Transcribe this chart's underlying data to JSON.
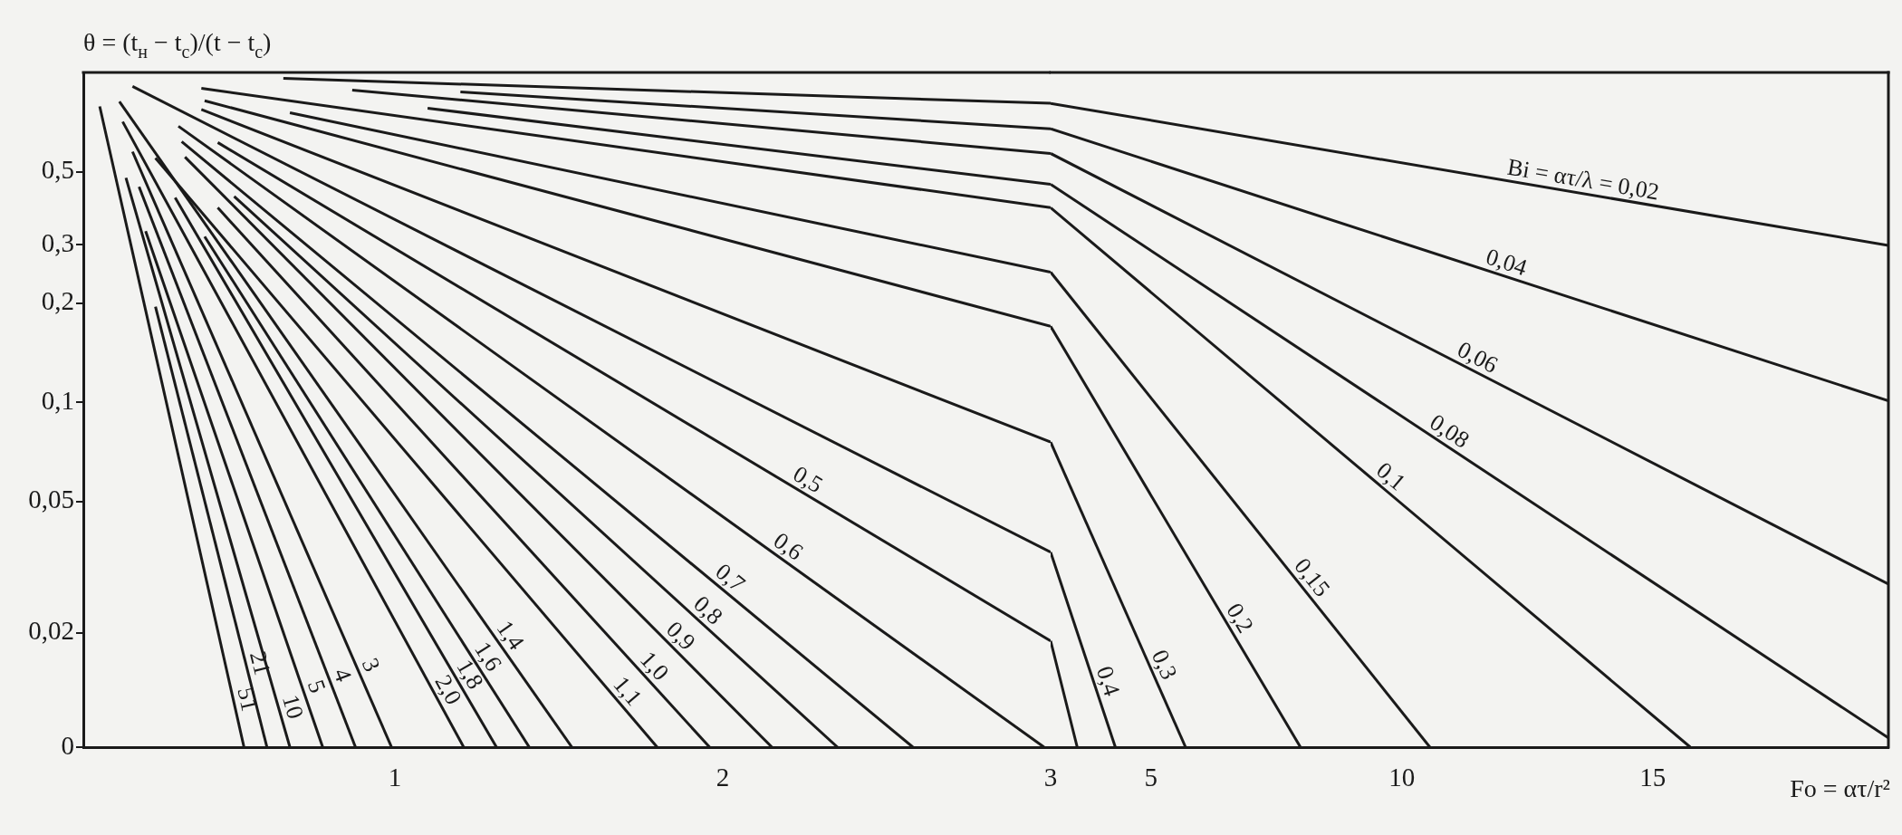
{
  "chart_data": [
    {
      "type": "line",
      "ylabel": "θ = (t$_{н}$ − t$_{с}$)/(t − t$_{с}$)",
      "log": "y",
      "xlim": [
        0.05,
        3
      ],
      "xticks": [
        1,
        2
      ],
      "ylim": [
        0.009,
        1
      ],
      "yticks": [
        {
          "value": 0.009,
          "label": "0"
        },
        {
          "value": 0.02,
          "label": "0,02"
        },
        {
          "value": 0.05,
          "label": "0,05"
        },
        {
          "value": 0.1,
          "label": "0,1"
        },
        {
          "value": 0.2,
          "label": "0,2"
        },
        {
          "value": 0.3,
          "label": "0,3"
        },
        {
          "value": 0.5,
          "label": "0,5"
        }
      ],
      "series": [
        {
          "color": "#1a1a1a",
          "x": [
            0.66,
            3
          ],
          "values": [
            0.96,
            0.806
          ]
        },
        {
          "color": "#1a1a1a",
          "x": [
            1.2,
            3
          ],
          "values": [
            0.873,
            0.675
          ]
        },
        {
          "color": "#1a1a1a",
          "x": [
            0.87,
            3
          ],
          "values": [
            0.884,
            0.568
          ]
        },
        {
          "color": "#1a1a1a",
          "x": [
            1.1,
            3
          ],
          "values": [
            0.779,
            0.458
          ]
        },
        {
          "color": "#1a1a1a",
          "x": [
            0.41,
            3
          ],
          "values": [
            0.895,
            0.389
          ]
        },
        {
          "color": "#1a1a1a",
          "x": [
            0.68,
            3
          ],
          "values": [
            0.755,
            0.248
          ]
        },
        {
          "color": "#1a1a1a",
          "x": [
            0.42,
            3
          ],
          "values": [
            0.821,
            0.17
          ]
        },
        {
          "color": "#1a1a1a",
          "x": [
            0.41,
            3
          ],
          "values": [
            0.772,
            0.0757
          ]
        },
        {
          "color": "#1a1a1a",
          "x": [
            0.2,
            3
          ],
          "values": [
            0.907,
            0.0351
          ]
        },
        {
          "name": "0,5",
          "color": "#1a1a1a",
          "x": [
            0.46,
            3
          ],
          "values": [
            0.613,
            0.0189
          ]
        },
        {
          "name": "0,6",
          "color": "#1a1a1a",
          "x": [
            0.34,
            2.98
          ],
          "values": [
            0.687,
            0.009
          ]
        },
        {
          "name": "0,7",
          "color": "#1a1a1a",
          "x": [
            0.35,
            2.58
          ],
          "values": [
            0.617,
            0.009
          ]
        },
        {
          "name": "0,8",
          "color": "#1a1a1a",
          "x": [
            0.51,
            2.35
          ],
          "values": [
            0.421,
            0.009
          ]
        },
        {
          "name": "0,9",
          "color": "#1a1a1a",
          "x": [
            0.36,
            2.15
          ],
          "values": [
            0.554,
            0.009
          ]
        },
        {
          "name": "1,0",
          "color": "#1a1a1a",
          "x": [
            0.46,
            1.96
          ],
          "values": [
            0.389,
            0.009
          ]
        },
        {
          "name": "1,1",
          "color": "#1a1a1a",
          "x": [
            0.27,
            1.8
          ],
          "values": [
            0.55,
            0.009
          ]
        },
        {
          "name": "1,4",
          "color": "#1a1a1a",
          "x": [
            0.16,
            1.54
          ],
          "values": [
            0.816,
            0.009
          ]
        },
        {
          "name": "1,6",
          "color": "#1a1a1a",
          "x": [
            0.42,
            1.41
          ],
          "values": [
            0.318,
            0.009
          ]
        },
        {
          "name": "1,8",
          "color": "#1a1a1a",
          "x": [
            0.33,
            1.31
          ],
          "values": [
            0.417,
            0.009
          ]
        },
        {
          "name": "2,0",
          "color": "#1a1a1a",
          "x": [
            0.17,
            1.21
          ],
          "values": [
            0.709,
            0.009
          ]
        },
        {
          "name": "3",
          "color": "#1a1a1a",
          "x": [
            0.2,
            0.99
          ],
          "values": [
            0.575,
            0.009
          ]
        },
        {
          "name": "4",
          "color": "#1a1a1a",
          "x": [
            0.22,
            0.88
          ],
          "values": [
            0.45,
            0.009
          ]
        },
        {
          "name": "5",
          "color": "#1a1a1a",
          "x": [
            0.24,
            0.78
          ],
          "values": [
            0.33,
            0.009
          ]
        },
        {
          "name": "10",
          "color": "#1a1a1a",
          "x": [
            0.18,
            0.68
          ],
          "values": [
            0.479,
            0.009
          ]
        },
        {
          "name": "21",
          "color": "#1a1a1a",
          "x": [
            0.27,
            0.61
          ],
          "values": [
            0.195,
            0.009
          ]
        },
        {
          "name": "51",
          "color": "#1a1a1a",
          "x": [
            0.1,
            0.54
          ],
          "values": [
            0.789,
            0.009
          ]
        }
      ]
    },
    {
      "type": "line",
      "xlabel": "Fo = ατ/r²",
      "log": "y",
      "tick_labels": "x",
      "xlim": [
        3,
        19.7
      ],
      "xticks": [
        3,
        5,
        10,
        15
      ],
      "ylim": [
        0.009,
        1
      ],
      "series": [
        {
          "name": "Bi = ατ/λ = 0,02",
          "color": "#1a1a1a",
          "x": [
            3,
            19.7
          ],
          "values": [
            0.806,
            0.299
          ]
        },
        {
          "name": "0,04",
          "color": "#1a1a1a",
          "x": [
            3,
            19.7
          ],
          "values": [
            0.675,
            0.101
          ]
        },
        {
          "name": "0,06",
          "color": "#1a1a1a",
          "x": [
            3,
            19.7
          ],
          "values": [
            0.568,
            0.0281
          ]
        },
        {
          "name": "0,08",
          "color": "#1a1a1a",
          "x": [
            3,
            19.7
          ],
          "values": [
            0.458,
            0.0096
          ]
        },
        {
          "name": "0,1",
          "color": "#1a1a1a",
          "x": [
            3,
            15.75
          ],
          "values": [
            0.389,
            0.009
          ]
        },
        {
          "name": "0,15",
          "color": "#1a1a1a",
          "x": [
            3,
            10.56
          ],
          "values": [
            0.248,
            0.009
          ]
        },
        {
          "name": "0,2",
          "color": "#1a1a1a",
          "x": [
            3,
            7.98
          ],
          "values": [
            0.17,
            0.009
          ]
        },
        {
          "name": "0,3",
          "color": "#1a1a1a",
          "x": [
            3,
            5.69
          ],
          "values": [
            0.0757,
            0.009
          ]
        },
        {
          "name": "0,4",
          "color": "#1a1a1a",
          "x": [
            3,
            4.29
          ],
          "values": [
            0.0351,
            0.009
          ]
        },
        {
          "color": "#1a1a1a",
          "x": [
            3,
            3.53
          ],
          "values": [
            0.0189,
            0.009
          ]
        }
      ]
    }
  ]
}
